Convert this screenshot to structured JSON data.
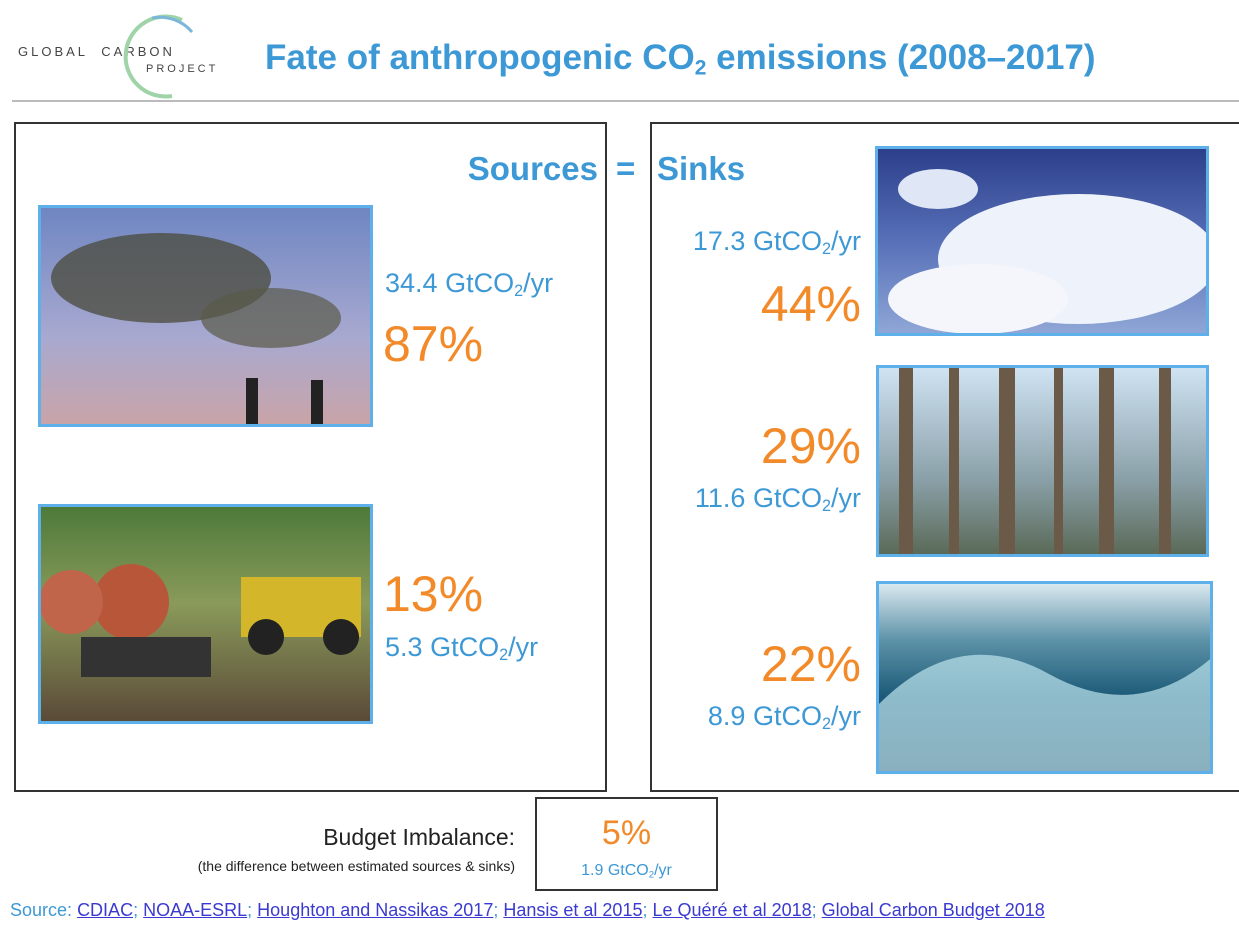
{
  "header": {
    "logo": {
      "line1_left": "GLOBAL",
      "line1_right": "CARBON",
      "line2": "PROJECT"
    },
    "title": {
      "before": "Fate of anthropogenic CO",
      "subscript": "2",
      "after": " emissions (2008–2017)"
    }
  },
  "equation": {
    "sources": "Sources",
    "equals": "=",
    "sinks": "Sinks"
  },
  "sources": [
    {
      "percent": "87%",
      "amount": "34.4",
      "unit": "GtCO",
      "unit_sub": "2",
      "unit_after": "/yr"
    },
    {
      "percent": "13%",
      "amount": "5.3",
      "unit": "GtCO",
      "unit_sub": "2",
      "unit_after": "/yr"
    }
  ],
  "sinks": [
    {
      "percent": "44%",
      "amount": "17.3",
      "unit": "GtCO",
      "unit_sub": "2",
      "unit_after": "/yr"
    },
    {
      "percent": "29%",
      "amount": "11.6",
      "unit": "GtCO",
      "unit_sub": "2",
      "unit_after": "/yr"
    },
    {
      "percent": "22%",
      "amount": "8.9",
      "unit": "GtCO",
      "unit_sub": "2",
      "unit_after": "/yr"
    }
  ],
  "imbalance": {
    "label": "Budget Imbalance:",
    "note": "(the difference between estimated sources & sinks)",
    "percent": "5%",
    "amount": "1.9",
    "unit": "GtCO",
    "unit_sub": "2",
    "unit_after": "/yr"
  },
  "footer": {
    "prefix": "Source:",
    "separator": ";",
    "links": [
      "CDIAC",
      "NOAA-ESRL",
      "Houghton and Nassikas 2017",
      "Hansis et al 2015",
      "Le Quéré et al 2018",
      "Global Carbon Budget 2018"
    ]
  }
}
